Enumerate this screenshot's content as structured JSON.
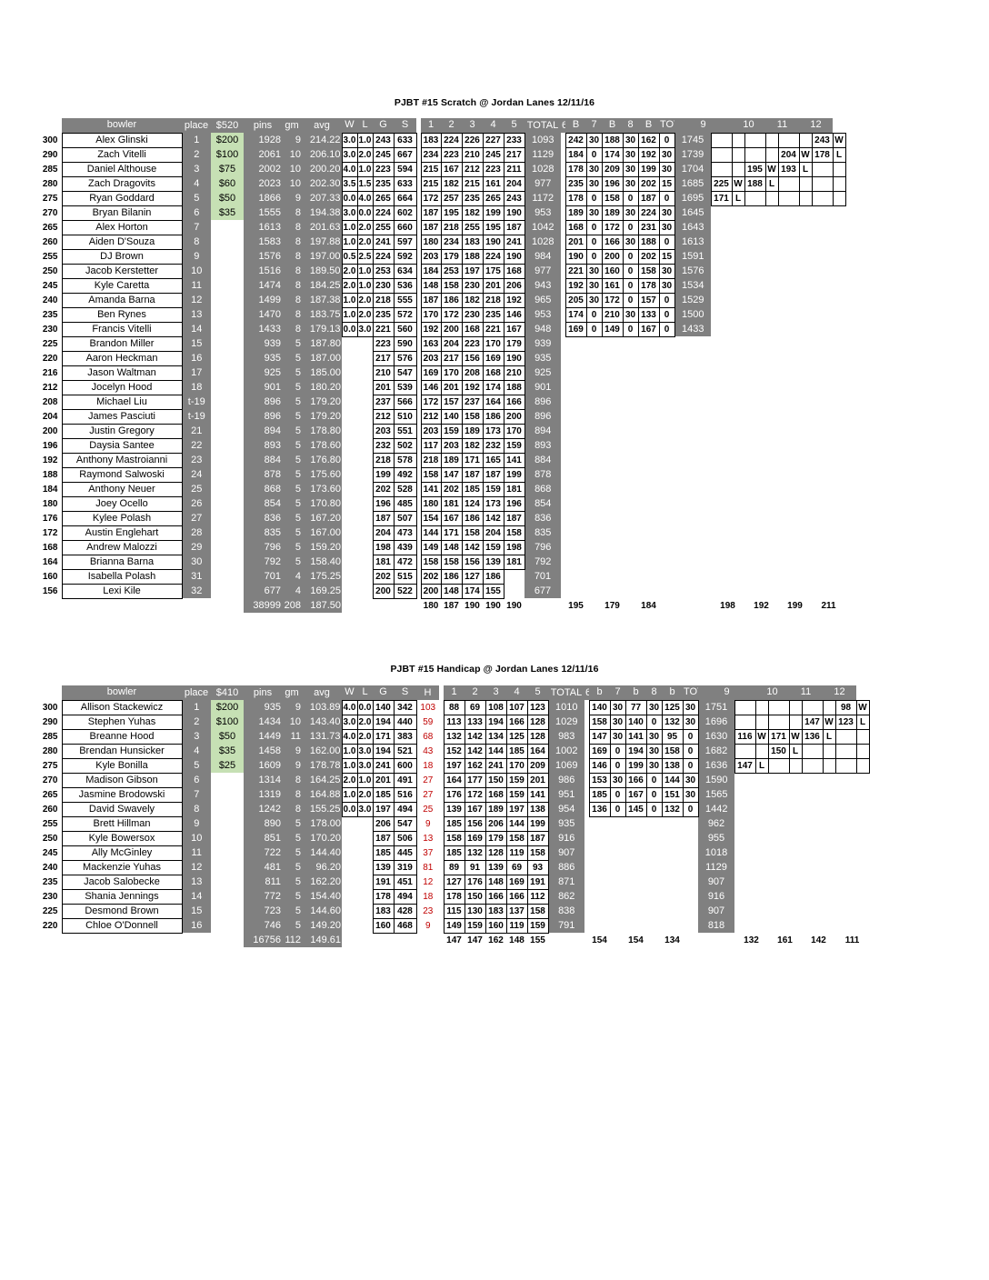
{
  "scratch": {
    "title": "PJBT #15 Scratch @ Jordan Lanes 12/11/16",
    "headers": [
      "bowler",
      "place",
      "$520",
      "pins",
      "gm",
      "avg",
      "W",
      "L",
      "G",
      "S",
      "1",
      "2",
      "3",
      "4",
      "5",
      "TOTAL",
      "6",
      "B",
      "7",
      "B",
      "8",
      "B",
      "TOTAL",
      "9",
      "10",
      "11",
      "12"
    ],
    "rows": [
      [
        "300",
        "Alex Glinski",
        "1",
        "$200",
        "1928",
        "9",
        "214.22",
        "3.0",
        "1.0",
        "243",
        "633",
        "183",
        "224",
        "226",
        "227",
        "233",
        "1093",
        "242",
        "30",
        "188",
        "30",
        "162",
        "0",
        "1745",
        "",
        "",
        "",
        "",
        "",
        "",
        "243",
        "W"
      ],
      [
        "290",
        "Zach Vitelli",
        "2",
        "$100",
        "2061",
        "10",
        "206.10",
        "3.0",
        "2.0",
        "245",
        "667",
        "234",
        "223",
        "210",
        "245",
        "217",
        "1129",
        "184",
        "0",
        "174",
        "30",
        "192",
        "30",
        "1739",
        "",
        "",
        "",
        "",
        "204",
        "W",
        "178",
        "L"
      ],
      [
        "285",
        "Daniel Althouse",
        "3",
        "$75",
        "2002",
        "10",
        "200.20",
        "4.0",
        "1.0",
        "223",
        "594",
        "215",
        "167",
        "212",
        "223",
        "211",
        "1028",
        "178",
        "30",
        "209",
        "30",
        "199",
        "30",
        "1704",
        "",
        "",
        "195",
        "W",
        "193",
        "L",
        "",
        ""
      ],
      [
        "280",
        "Zach Dragovits",
        "4",
        "$60",
        "2023",
        "10",
        "202.30",
        "3.5",
        "1.5",
        "235",
        "633",
        "215",
        "182",
        "215",
        "161",
        "204",
        "977",
        "235",
        "30",
        "196",
        "30",
        "202",
        "15",
        "1685",
        "225",
        "W",
        "188",
        "L",
        "",
        "",
        "",
        ""
      ],
      [
        "275",
        "Ryan Goddard",
        "5",
        "$50",
        "1866",
        "9",
        "207.33",
        "0.0",
        "4.0",
        "265",
        "664",
        "172",
        "257",
        "235",
        "265",
        "243",
        "1172",
        "178",
        "0",
        "158",
        "0",
        "187",
        "0",
        "1695",
        "171",
        "L",
        "",
        "",
        "",
        "",
        "",
        ""
      ],
      [
        "270",
        "Bryan Bilanin",
        "6",
        "$35",
        "1555",
        "8",
        "194.38",
        "3.0",
        "0.0",
        "224",
        "602",
        "187",
        "195",
        "182",
        "199",
        "190",
        "953",
        "189",
        "30",
        "189",
        "30",
        "224",
        "30",
        "1645"
      ],
      [
        "265",
        "Alex Horton",
        "7",
        "",
        "1613",
        "8",
        "201.63",
        "1.0",
        "2.0",
        "255",
        "660",
        "187",
        "218",
        "255",
        "195",
        "187",
        "1042",
        "168",
        "0",
        "172",
        "0",
        "231",
        "30",
        "1643"
      ],
      [
        "260",
        "Aiden D'Souza",
        "8",
        "",
        "1583",
        "8",
        "197.88",
        "1.0",
        "2.0",
        "241",
        "597",
        "180",
        "234",
        "183",
        "190",
        "241",
        "1028",
        "201",
        "0",
        "166",
        "30",
        "188",
        "0",
        "1613"
      ],
      [
        "255",
        "DJ Brown",
        "9",
        "",
        "1576",
        "8",
        "197.00",
        "0.5",
        "2.5",
        "224",
        "592",
        "203",
        "179",
        "188",
        "224",
        "190",
        "984",
        "190",
        "0",
        "200",
        "0",
        "202",
        "15",
        "1591"
      ],
      [
        "250",
        "Jacob Kerstetter",
        "10",
        "",
        "1516",
        "8",
        "189.50",
        "2.0",
        "1.0",
        "253",
        "634",
        "184",
        "253",
        "197",
        "175",
        "168",
        "977",
        "221",
        "30",
        "160",
        "0",
        "158",
        "30",
        "1576"
      ],
      [
        "245",
        "Kyle Caretta",
        "11",
        "",
        "1474",
        "8",
        "184.25",
        "2.0",
        "1.0",
        "230",
        "536",
        "148",
        "158",
        "230",
        "201",
        "206",
        "943",
        "192",
        "30",
        "161",
        "0",
        "178",
        "30",
        "1534"
      ],
      [
        "240",
        "Amanda Barna",
        "12",
        "",
        "1499",
        "8",
        "187.38",
        "1.0",
        "2.0",
        "218",
        "555",
        "187",
        "186",
        "182",
        "218",
        "192",
        "965",
        "205",
        "30",
        "172",
        "0",
        "157",
        "0",
        "1529"
      ],
      [
        "235",
        "Ben Rynes",
        "13",
        "",
        "1470",
        "8",
        "183.75",
        "1.0",
        "2.0",
        "235",
        "572",
        "170",
        "172",
        "230",
        "235",
        "146",
        "953",
        "174",
        "0",
        "210",
        "30",
        "133",
        "0",
        "1500"
      ],
      [
        "230",
        "Francis Vitelli",
        "14",
        "",
        "1433",
        "8",
        "179.13",
        "0.0",
        "3.0",
        "221",
        "560",
        "192",
        "200",
        "168",
        "221",
        "167",
        "948",
        "169",
        "0",
        "149",
        "0",
        "167",
        "0",
        "1433"
      ],
      [
        "225",
        "Brandon Miller",
        "15",
        "",
        "939",
        "5",
        "187.80",
        "",
        "",
        "223",
        "590",
        "163",
        "204",
        "223",
        "170",
        "179",
        "939"
      ],
      [
        "220",
        "Aaron Heckman",
        "16",
        "",
        "935",
        "5",
        "187.00",
        "",
        "",
        "217",
        "576",
        "203",
        "217",
        "156",
        "169",
        "190",
        "935"
      ],
      [
        "216",
        "Jason Waltman",
        "17",
        "",
        "925",
        "5",
        "185.00",
        "",
        "",
        "210",
        "547",
        "169",
        "170",
        "208",
        "168",
        "210",
        "925"
      ],
      [
        "212",
        "Jocelyn Hood",
        "18",
        "",
        "901",
        "5",
        "180.20",
        "",
        "",
        "201",
        "539",
        "146",
        "201",
        "192",
        "174",
        "188",
        "901"
      ],
      [
        "208",
        "Michael Liu",
        "t-19",
        "",
        "896",
        "5",
        "179.20",
        "",
        "",
        "237",
        "566",
        "172",
        "157",
        "237",
        "164",
        "166",
        "896"
      ],
      [
        "204",
        "James Pasciuti",
        "t-19",
        "",
        "896",
        "5",
        "179.20",
        "",
        "",
        "212",
        "510",
        "212",
        "140",
        "158",
        "186",
        "200",
        "896"
      ],
      [
        "200",
        "Justin Gregory",
        "21",
        "",
        "894",
        "5",
        "178.80",
        "",
        "",
        "203",
        "551",
        "203",
        "159",
        "189",
        "173",
        "170",
        "894"
      ],
      [
        "196",
        "Daysia Santee",
        "22",
        "",
        "893",
        "5",
        "178.60",
        "",
        "",
        "232",
        "502",
        "117",
        "203",
        "182",
        "232",
        "159",
        "893"
      ],
      [
        "192",
        "Anthony Mastroianni",
        "23",
        "",
        "884",
        "5",
        "176.80",
        "",
        "",
        "218",
        "578",
        "218",
        "189",
        "171",
        "165",
        "141",
        "884"
      ],
      [
        "188",
        "Raymond Salwoski",
        "24",
        "",
        "878",
        "5",
        "175.60",
        "",
        "",
        "199",
        "492",
        "158",
        "147",
        "187",
        "187",
        "199",
        "878"
      ],
      [
        "184",
        "Anthony Neuer",
        "25",
        "",
        "868",
        "5",
        "173.60",
        "",
        "",
        "202",
        "528",
        "141",
        "202",
        "185",
        "159",
        "181",
        "868"
      ],
      [
        "180",
        "Joey Ocello",
        "26",
        "",
        "854",
        "5",
        "170.80",
        "",
        "",
        "196",
        "485",
        "180",
        "181",
        "124",
        "173",
        "196",
        "854"
      ],
      [
        "176",
        "Kylee Polash",
        "27",
        "",
        "836",
        "5",
        "167.20",
        "",
        "",
        "187",
        "507",
        "154",
        "167",
        "186",
        "142",
        "187",
        "836"
      ],
      [
        "172",
        "Austin Englehart",
        "28",
        "",
        "835",
        "5",
        "167.00",
        "",
        "",
        "204",
        "473",
        "144",
        "171",
        "158",
        "204",
        "158",
        "835"
      ],
      [
        "168",
        "Andrew Malozzi",
        "29",
        "",
        "796",
        "5",
        "159.20",
        "",
        "",
        "198",
        "439",
        "149",
        "148",
        "142",
        "159",
        "198",
        "796"
      ],
      [
        "164",
        "Brianna Barna",
        "30",
        "",
        "792",
        "5",
        "158.40",
        "",
        "",
        "181",
        "472",
        "158",
        "158",
        "156",
        "139",
        "181",
        "792"
      ],
      [
        "160",
        "Isabella Polash",
        "31",
        "",
        "701",
        "4",
        "175.25",
        "",
        "",
        "202",
        "515",
        "202",
        "186",
        "127",
        "186",
        "",
        "701"
      ],
      [
        "156",
        "Lexi Kile",
        "32",
        "",
        "677",
        "4",
        "169.25",
        "",
        "",
        "200",
        "522",
        "200",
        "148",
        "174",
        "155",
        "",
        "677"
      ]
    ],
    "totals": {
      "pins": "38999",
      "gm": "208",
      "avg": "187.50",
      "g1": "180",
      "g2": "187",
      "g3": "190",
      "g4": "190",
      "g5": "190",
      "g6": "195",
      "g7": "179",
      "g8": "184",
      "g9": "198",
      "g10": "192",
      "g11": "199",
      "g12": "211"
    }
  },
  "handicap": {
    "title": "PJBT #15 Handicap @ Jordan Lanes 12/11/16",
    "headers": [
      "bowler",
      "place",
      "$410",
      "pins",
      "gm",
      "avg",
      "W",
      "L",
      "G",
      "S",
      "H",
      "1",
      "2",
      "3",
      "4",
      "5",
      "TOTAL",
      "6",
      "b",
      "7",
      "b",
      "8",
      "b",
      "TOTAL",
      "9",
      "10",
      "11",
      "12"
    ],
    "rows": [
      [
        "300",
        "Allison Stackewicz",
        "1",
        "$200",
        "935",
        "9",
        "103.89",
        "4.0",
        "0.0",
        "140",
        "342",
        "103",
        "88",
        "69",
        "108",
        "107",
        "123",
        "1010",
        "140",
        "30",
        "77",
        "30",
        "125",
        "30",
        "1751",
        "",
        "",
        "",
        "",
        "",
        "",
        "98",
        "W"
      ],
      [
        "290",
        "Stephen Yuhas",
        "2",
        "$100",
        "1434",
        "10",
        "143.40",
        "3.0",
        "2.0",
        "194",
        "440",
        "59",
        "113",
        "133",
        "194",
        "166",
        "128",
        "1029",
        "158",
        "30",
        "140",
        "0",
        "132",
        "30",
        "1696",
        "",
        "",
        "",
        "",
        "147",
        "W",
        "123",
        "L"
      ],
      [
        "285",
        "Breanne Hood",
        "3",
        "$50",
        "1449",
        "11",
        "131.73",
        "4.0",
        "2.0",
        "171",
        "383",
        "68",
        "132",
        "142",
        "134",
        "125",
        "128",
        "983",
        "147",
        "30",
        "141",
        "30",
        "95",
        "0",
        "1630",
        "116",
        "W",
        "171",
        "W",
        "136",
        "L",
        "",
        ""
      ],
      [
        "280",
        "Brendan Hunsicker",
        "4",
        "$35",
        "1458",
        "9",
        "162.00",
        "1.0",
        "3.0",
        "194",
        "521",
        "43",
        "152",
        "142",
        "144",
        "185",
        "164",
        "1002",
        "169",
        "0",
        "194",
        "30",
        "158",
        "0",
        "1682",
        "",
        "",
        "150",
        "L",
        "",
        "",
        "",
        ""
      ],
      [
        "275",
        "Kyle Bonilla",
        "5",
        "$25",
        "1609",
        "9",
        "178.78",
        "1.0",
        "3.0",
        "241",
        "600",
        "18",
        "197",
        "162",
        "241",
        "170",
        "209",
        "1069",
        "146",
        "0",
        "199",
        "30",
        "138",
        "0",
        "1636",
        "147",
        "L",
        "",
        "",
        "",
        "",
        "",
        ""
      ],
      [
        "270",
        "Madison Gibson",
        "6",
        "",
        "1314",
        "8",
        "164.25",
        "2.0",
        "1.0",
        "201",
        "491",
        "27",
        "164",
        "177",
        "150",
        "159",
        "201",
        "986",
        "153",
        "30",
        "166",
        "0",
        "144",
        "30",
        "1590"
      ],
      [
        "265",
        "Jasmine Brodowski",
        "7",
        "",
        "1319",
        "8",
        "164.88",
        "1.0",
        "2.0",
        "185",
        "516",
        "27",
        "176",
        "172",
        "168",
        "159",
        "141",
        "951",
        "185",
        "0",
        "167",
        "0",
        "151",
        "30",
        "1565"
      ],
      [
        "260",
        "David Swavely",
        "8",
        "",
        "1242",
        "8",
        "155.25",
        "0.0",
        "3.0",
        "197",
        "494",
        "25",
        "139",
        "167",
        "189",
        "197",
        "138",
        "954",
        "136",
        "0",
        "145",
        "0",
        "132",
        "0",
        "1442"
      ],
      [
        "255",
        "Brett Hillman",
        "9",
        "",
        "890",
        "5",
        "178.00",
        "",
        "",
        "206",
        "547",
        "9",
        "185",
        "156",
        "206",
        "144",
        "199",
        "935",
        "",
        "",
        "",
        "",
        "",
        "",
        "962"
      ],
      [
        "250",
        "Kyle Bowersox",
        "10",
        "",
        "851",
        "5",
        "170.20",
        "",
        "",
        "187",
        "506",
        "13",
        "158",
        "169",
        "179",
        "158",
        "187",
        "916",
        "",
        "",
        "",
        "",
        "",
        "",
        "955"
      ],
      [
        "245",
        "Ally McGinley",
        "11",
        "",
        "722",
        "5",
        "144.40",
        "",
        "",
        "185",
        "445",
        "37",
        "185",
        "132",
        "128",
        "119",
        "158",
        "907",
        "",
        "",
        "",
        "",
        "",
        "",
        "1018"
      ],
      [
        "240",
        "Mackenzie Yuhas",
        "12",
        "",
        "481",
        "5",
        "96.20",
        "",
        "",
        "139",
        "319",
        "81",
        "89",
        "91",
        "139",
        "69",
        "93",
        "886",
        "",
        "",
        "",
        "",
        "",
        "",
        "1129"
      ],
      [
        "235",
        "Jacob Salobecke",
        "13",
        "",
        "811",
        "5",
        "162.20",
        "",
        "",
        "191",
        "451",
        "12",
        "127",
        "176",
        "148",
        "169",
        "191",
        "871",
        "",
        "",
        "",
        "",
        "",
        "",
        "907"
      ],
      [
        "230",
        "Shania Jennings",
        "14",
        "",
        "772",
        "5",
        "154.40",
        "",
        "",
        "178",
        "494",
        "18",
        "178",
        "150",
        "166",
        "166",
        "112",
        "862",
        "",
        "",
        "",
        "",
        "",
        "",
        "916"
      ],
      [
        "225",
        "Desmond Brown",
        "15",
        "",
        "723",
        "5",
        "144.60",
        "",
        "",
        "183",
        "428",
        "23",
        "115",
        "130",
        "183",
        "137",
        "158",
        "838",
        "",
        "",
        "",
        "",
        "",
        "",
        "907"
      ],
      [
        "220",
        "Chloe O'Donnell",
        "16",
        "",
        "746",
        "5",
        "149.20",
        "",
        "",
        "160",
        "468",
        "9",
        "149",
        "159",
        "160",
        "119",
        "159",
        "791",
        "",
        "",
        "",
        "",
        "",
        "",
        "818"
      ]
    ],
    "totals": {
      "pins": "16756",
      "gm": "112",
      "avg": "149.61",
      "g1": "147",
      "g2": "147",
      "g3": "162",
      "g4": "148",
      "g5": "155",
      "g6": "154",
      "g7": "154",
      "g8": "134",
      "g9": "132",
      "g10": "161",
      "g11": "142",
      "g12": "111"
    }
  },
  "colors": {
    "header_gray": "#808080",
    "prize_green": "#c6e0b4",
    "handicap_red": "#c00000"
  }
}
